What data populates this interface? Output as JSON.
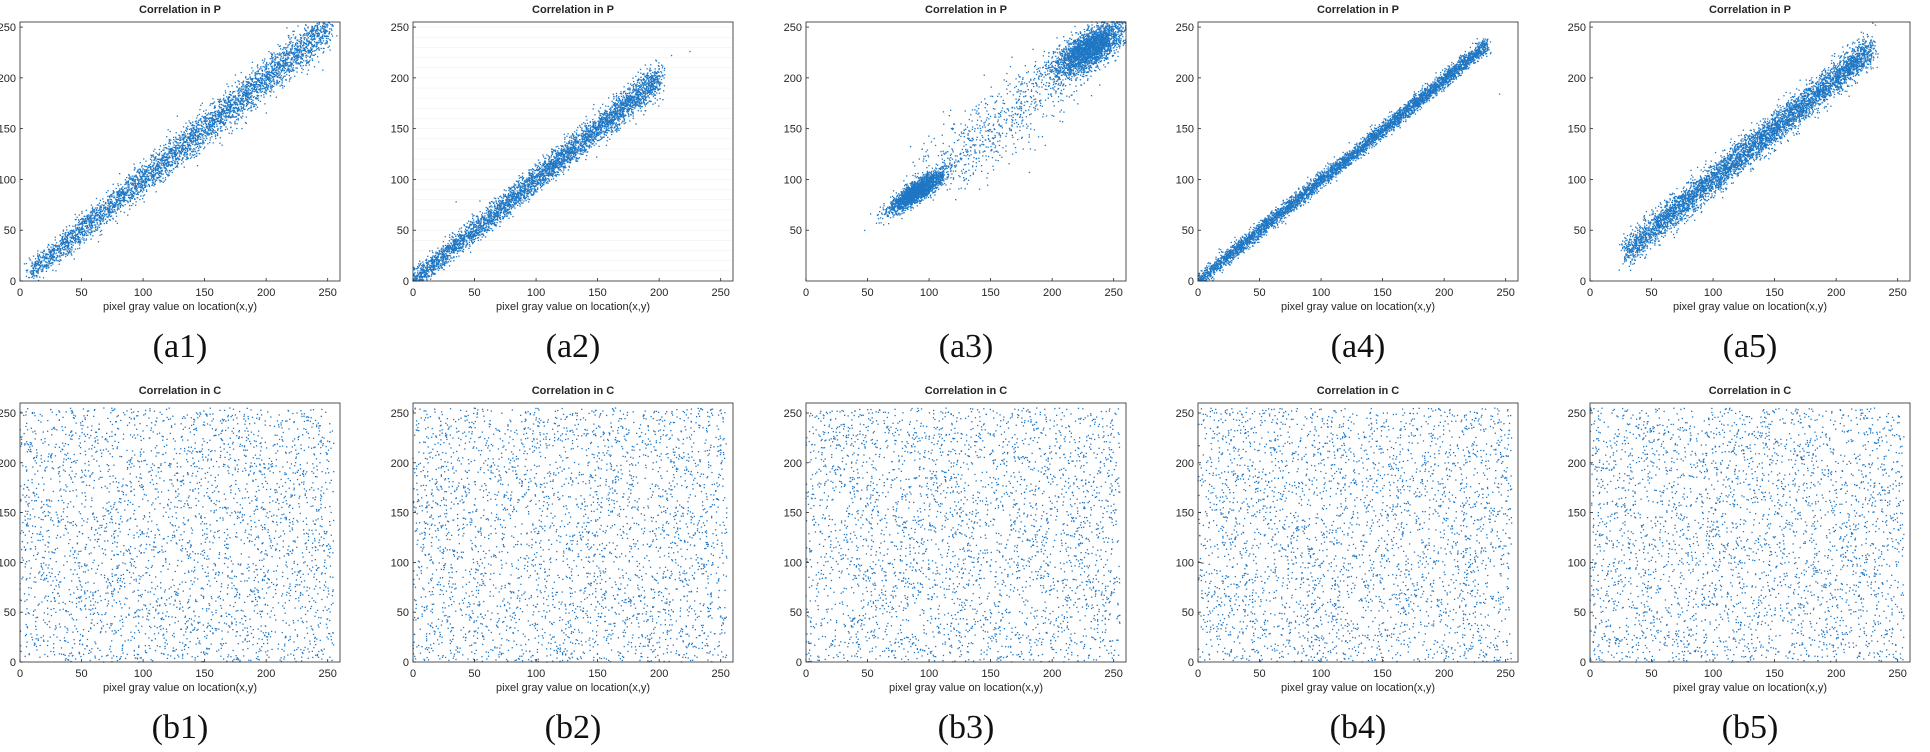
{
  "colors": {
    "marker": "#1f77c4",
    "axes": "#262626",
    "caption": "#111111",
    "background": "#ffffff"
  },
  "chart_data": [
    {
      "id": "a1",
      "type": "scatter",
      "title": "Correlation in P",
      "xlabel": "pixel gray value on location(x,y)",
      "ylabel": "",
      "caption": "(a1)",
      "xlim": [
        0,
        260
      ],
      "ylim": [
        0,
        255
      ],
      "xticks": [
        0,
        50,
        100,
        150,
        200,
        250
      ],
      "yticks": [
        0,
        50,
        100,
        150,
        200,
        250
      ],
      "pattern": {
        "kind": "diagonal",
        "x_range": [
          8,
          252
        ],
        "slope": 1.0,
        "intercept": 0,
        "spread": 5.5,
        "spread_growth": 0.018,
        "points": 4200
      }
    },
    {
      "id": "a2",
      "type": "scatter",
      "title": "Correlation in P",
      "xlabel": "pixel gray value on location(x,y)",
      "ylabel": "",
      "caption": "(a2)",
      "xlim": [
        0,
        260
      ],
      "ylim": [
        0,
        255
      ],
      "xticks": [
        0,
        50,
        100,
        150,
        200,
        250
      ],
      "yticks": [
        0,
        50,
        100,
        150,
        200,
        250
      ],
      "grid": "horizontal-faint",
      "pattern": {
        "kind": "diagonal",
        "x_range": [
          0,
          200
        ],
        "slope": 1.0,
        "intercept": 0,
        "spread": 5.0,
        "spread_growth": 0.015,
        "points": 4200,
        "outliers": [
          [
            210,
            222
          ],
          [
            225,
            226
          ],
          [
            35,
            78
          ]
        ]
      }
    },
    {
      "id": "a3",
      "type": "scatter",
      "title": "Correlation in P",
      "xlabel": "",
      "ylabel": "",
      "caption": "(a3)",
      "xlim": [
        0,
        260
      ],
      "ylim": [
        0,
        255
      ],
      "xticks": [
        0,
        50,
        100,
        150,
        200,
        250
      ],
      "yticks": [
        50,
        100,
        150,
        200,
        250
      ],
      "pattern": {
        "kind": "clusters",
        "clusters": [
          {
            "center": [
              90,
              88
            ],
            "sx": 11,
            "sy": 10,
            "corr": 0.85,
            "points": 2200
          },
          {
            "center": [
              230,
              228
            ],
            "sx": 14,
            "sy": 13,
            "corr": 0.7,
            "points": 2600
          }
        ],
        "bridge": {
          "from": [
            105,
            104
          ],
          "to": [
            210,
            208
          ],
          "spread": 15,
          "points": 700
        },
        "clip_y_max": 255
      }
    },
    {
      "id": "a4",
      "type": "scatter",
      "title": "Correlation in P",
      "xlabel": "pixel gray value on location(x,y)",
      "ylabel": "",
      "caption": "(a4)",
      "xlim": [
        0,
        260
      ],
      "ylim": [
        0,
        255
      ],
      "xticks": [
        0,
        50,
        100,
        150,
        200,
        250
      ],
      "yticks": [
        0,
        50,
        100,
        150,
        200,
        250
      ],
      "pattern": {
        "kind": "diagonal",
        "x_range": [
          0,
          235
        ],
        "slope": 0.99,
        "intercept": 0,
        "spread": 3.8,
        "spread_growth": 0.0,
        "points": 4800,
        "outliers": [
          [
            238,
            225
          ],
          [
            245,
            184
          ]
        ]
      }
    },
    {
      "id": "a5",
      "type": "scatter",
      "title": "Correlation in P",
      "xlabel": "pixel gray value on location(x,y)",
      "ylabel": "",
      "caption": "(a5)",
      "xlim": [
        0,
        260
      ],
      "ylim": [
        0,
        255
      ],
      "xticks": [
        0,
        50,
        100,
        150,
        200,
        250
      ],
      "yticks": [
        0,
        50,
        100,
        150,
        200,
        250
      ],
      "pattern": {
        "kind": "diagonal",
        "x_range": [
          28,
          228
        ],
        "slope": 1.0,
        "intercept": 0,
        "spread": 7.5,
        "spread_growth": 0.0,
        "points": 5200
      }
    },
    {
      "id": "b1",
      "type": "scatter",
      "title": "Correlation in C",
      "xlabel": "pixel gray value on location(x,y)",
      "ylabel": "",
      "caption": "(b1)",
      "xlim": [
        0,
        260
      ],
      "ylim": [
        0,
        260
      ],
      "xticks": [
        0,
        50,
        100,
        150,
        200,
        250
      ],
      "yticks": [
        0,
        50,
        100,
        150,
        200,
        250
      ],
      "pattern": {
        "kind": "uniform",
        "range": [
          0,
          255
        ],
        "points": 3200
      }
    },
    {
      "id": "b2",
      "type": "scatter",
      "title": "Correlation in C",
      "xlabel": "pixel gray value on location(x,y)",
      "ylabel": "",
      "caption": "(b2)",
      "xlim": [
        0,
        260
      ],
      "ylim": [
        0,
        260
      ],
      "xticks": [
        0,
        50,
        100,
        150,
        200,
        250
      ],
      "yticks": [
        0,
        50,
        100,
        150,
        200,
        250
      ],
      "pattern": {
        "kind": "uniform",
        "range": [
          0,
          255
        ],
        "points": 3200
      }
    },
    {
      "id": "b3",
      "type": "scatter",
      "title": "Correlation in C",
      "xlabel": "pixel gray value on location(x,y)",
      "ylabel": "",
      "caption": "(b3)",
      "xlim": [
        0,
        260
      ],
      "ylim": [
        0,
        260
      ],
      "xticks": [
        0,
        50,
        100,
        150,
        200,
        250
      ],
      "yticks": [
        0,
        50,
        100,
        150,
        200,
        250
      ],
      "pattern": {
        "kind": "uniform",
        "range": [
          0,
          255
        ],
        "points": 3200
      }
    },
    {
      "id": "b4",
      "type": "scatter",
      "title": "Correlation in C",
      "xlabel": "pixel gray value on location(x,y)",
      "ylabel": "",
      "caption": "(b4)",
      "xlim": [
        0,
        260
      ],
      "ylim": [
        0,
        260
      ],
      "xticks": [
        0,
        50,
        100,
        150,
        200,
        250
      ],
      "yticks": [
        0,
        50,
        100,
        150,
        200,
        250
      ],
      "pattern": {
        "kind": "uniform",
        "range": [
          0,
          255
        ],
        "points": 3200
      }
    },
    {
      "id": "b5",
      "type": "scatter",
      "title": "Correlation in C",
      "xlabel": "pixel gray value on location(x,y)",
      "ylabel": "",
      "caption": "(b5)",
      "xlim": [
        0,
        260
      ],
      "ylim": [
        0,
        260
      ],
      "xticks": [
        0,
        50,
        100,
        150,
        200,
        250
      ],
      "yticks": [
        0,
        50,
        100,
        150,
        200,
        250
      ],
      "pattern": {
        "kind": "uniform",
        "range": [
          0,
          255
        ],
        "points": 3200
      }
    }
  ]
}
